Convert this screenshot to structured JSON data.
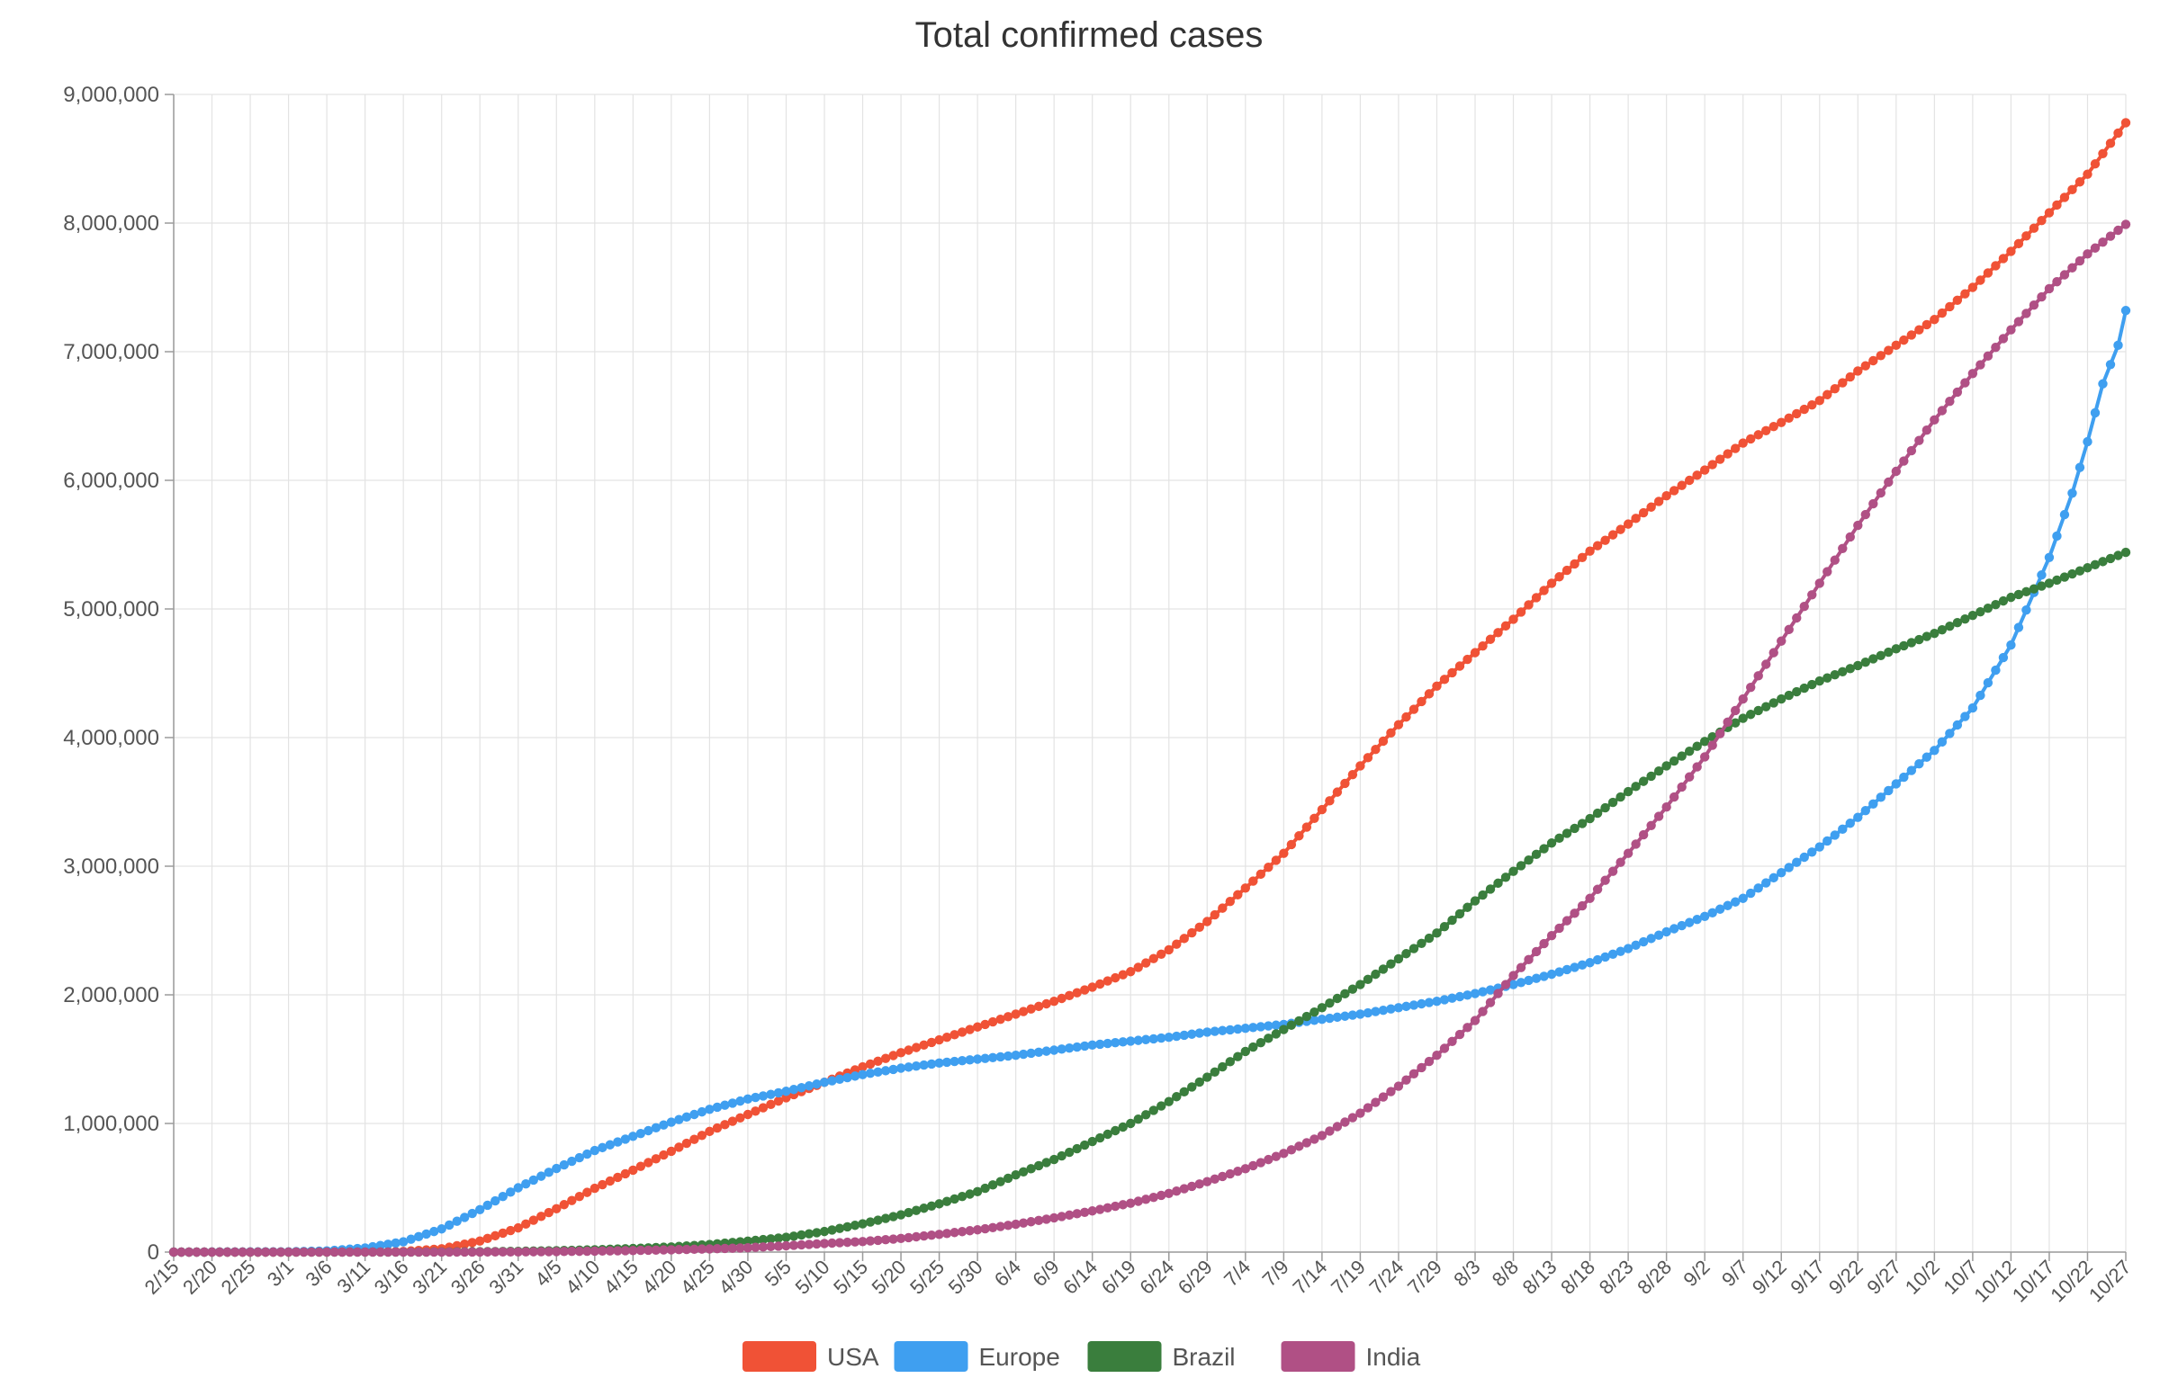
{
  "chart_data": {
    "type": "line",
    "title": "Total confirmed cases",
    "xlabel": "",
    "ylabel": "",
    "ylim": [
      0,
      9000000
    ],
    "yticks": [
      0,
      1000000,
      2000000,
      3000000,
      4000000,
      5000000,
      6000000,
      7000000,
      8000000,
      9000000
    ],
    "ytick_labels": [
      "0",
      "1,000,000",
      "2,000,000",
      "3,000,000",
      "4,000,000",
      "5,000,000",
      "6,000,000",
      "7,000,000",
      "8,000,000",
      "9,000,000"
    ],
    "x_start": "2/15",
    "x_end": "10/27",
    "x_tick_labels": [
      "2/15",
      "2/20",
      "2/25",
      "3/1",
      "3/6",
      "3/11",
      "3/16",
      "3/21",
      "3/26",
      "3/31",
      "4/5",
      "4/10",
      "4/15",
      "4/20",
      "4/25",
      "4/30",
      "5/5",
      "5/10",
      "5/15",
      "5/20",
      "5/25",
      "5/30",
      "6/4",
      "6/9",
      "6/14",
      "6/19",
      "6/24",
      "6/29",
      "7/4",
      "7/9",
      "7/14",
      "7/19",
      "7/24",
      "7/29",
      "8/3",
      "8/8",
      "8/13",
      "8/18",
      "8/23",
      "8/28",
      "9/2",
      "9/7",
      "9/12",
      "9/17",
      "9/22",
      "9/27",
      "10/2",
      "10/7",
      "10/12",
      "10/17",
      "10/22",
      "10/27"
    ],
    "grid": true,
    "legend_position": "bottom",
    "series": [
      {
        "name": "USA",
        "color": "#f05236",
        "points": [
          [
            "2/15",
            0
          ],
          [
            "3/1",
            70
          ],
          [
            "3/11",
            1300
          ],
          [
            "3/16",
            4600
          ],
          [
            "3/21",
            25500
          ],
          [
            "3/26",
            86000
          ],
          [
            "3/31",
            188000
          ],
          [
            "4/5",
            337000
          ],
          [
            "4/10",
            496000
          ],
          [
            "4/15",
            637000
          ],
          [
            "4/20",
            784000
          ],
          [
            "4/25",
            938000
          ],
          [
            "4/30",
            1070000
          ],
          [
            "5/5",
            1200000
          ],
          [
            "5/10",
            1320000
          ],
          [
            "5/15",
            1440000
          ],
          [
            "5/20",
            1550000
          ],
          [
            "5/25",
            1650000
          ],
          [
            "5/30",
            1750000
          ],
          [
            "6/4",
            1850000
          ],
          [
            "6/9",
            1950000
          ],
          [
            "6/14",
            2060000
          ],
          [
            "6/19",
            2180000
          ],
          [
            "6/24",
            2350000
          ],
          [
            "6/29",
            2570000
          ],
          [
            "7/4",
            2830000
          ],
          [
            "7/9",
            3100000
          ],
          [
            "7/14",
            3440000
          ],
          [
            "7/19",
            3780000
          ],
          [
            "7/24",
            4100000
          ],
          [
            "7/29",
            4400000
          ],
          [
            "8/3",
            4660000
          ],
          [
            "8/8",
            4920000
          ],
          [
            "8/13",
            5200000
          ],
          [
            "8/18",
            5450000
          ],
          [
            "8/23",
            5660000
          ],
          [
            "8/28",
            5880000
          ],
          [
            "9/2",
            6080000
          ],
          [
            "9/7",
            6290000
          ],
          [
            "9/12",
            6450000
          ],
          [
            "9/17",
            6620000
          ],
          [
            "9/22",
            6850000
          ],
          [
            "9/27",
            7050000
          ],
          [
            "10/2",
            7250000
          ],
          [
            "10/7",
            7500000
          ],
          [
            "10/12",
            7780000
          ],
          [
            "10/17",
            8080000
          ],
          [
            "10/22",
            8380000
          ],
          [
            "10/27",
            8780000
          ]
        ]
      },
      {
        "name": "Europe",
        "color": "#3f9ff0",
        "points": [
          [
            "2/15",
            0
          ],
          [
            "3/1",
            2500
          ],
          [
            "3/6",
            9000
          ],
          [
            "3/11",
            32000
          ],
          [
            "3/16",
            80000
          ],
          [
            "3/21",
            180000
          ],
          [
            "3/26",
            330000
          ],
          [
            "3/31",
            500000
          ],
          [
            "4/5",
            650000
          ],
          [
            "4/10",
            790000
          ],
          [
            "4/15",
            900000
          ],
          [
            "4/20",
            1010000
          ],
          [
            "4/25",
            1110000
          ],
          [
            "4/30",
            1190000
          ],
          [
            "5/5",
            1250000
          ],
          [
            "5/10",
            1320000
          ],
          [
            "5/15",
            1380000
          ],
          [
            "5/20",
            1430000
          ],
          [
            "5/25",
            1470000
          ],
          [
            "5/30",
            1500000
          ],
          [
            "6/4",
            1530000
          ],
          [
            "6/9",
            1570000
          ],
          [
            "6/14",
            1610000
          ],
          [
            "6/19",
            1640000
          ],
          [
            "6/24",
            1670000
          ],
          [
            "6/29",
            1710000
          ],
          [
            "7/4",
            1740000
          ],
          [
            "7/9",
            1770000
          ],
          [
            "7/14",
            1810000
          ],
          [
            "7/19",
            1850000
          ],
          [
            "7/24",
            1900000
          ],
          [
            "7/29",
            1950000
          ],
          [
            "8/3",
            2010000
          ],
          [
            "8/8",
            2080000
          ],
          [
            "8/13",
            2160000
          ],
          [
            "8/18",
            2250000
          ],
          [
            "8/23",
            2360000
          ],
          [
            "8/28",
            2490000
          ],
          [
            "9/2",
            2610000
          ],
          [
            "9/7",
            2750000
          ],
          [
            "9/12",
            2950000
          ],
          [
            "9/17",
            3150000
          ],
          [
            "9/22",
            3380000
          ],
          [
            "9/27",
            3640000
          ],
          [
            "10/2",
            3900000
          ],
          [
            "10/7",
            4230000
          ],
          [
            "10/12",
            4720000
          ],
          [
            "10/17",
            5400000
          ],
          [
            "10/20",
            5900000
          ],
          [
            "10/22",
            6300000
          ],
          [
            "10/24",
            6750000
          ],
          [
            "10/26",
            7050000
          ],
          [
            "10/27",
            7320000
          ]
        ]
      },
      {
        "name": "Brazil",
        "color": "#3a7e3d",
        "points": [
          [
            "2/15",
            0
          ],
          [
            "3/16",
            200
          ],
          [
            "3/21",
            1200
          ],
          [
            "3/26",
            3000
          ],
          [
            "3/31",
            6000
          ],
          [
            "4/5",
            11000
          ],
          [
            "4/10",
            18000
          ],
          [
            "4/15",
            28000
          ],
          [
            "4/20",
            40000
          ],
          [
            "4/25",
            59000
          ],
          [
            "4/30",
            85000
          ],
          [
            "5/5",
            115000
          ],
          [
            "5/10",
            160000
          ],
          [
            "5/15",
            220000
          ],
          [
            "5/20",
            290000
          ],
          [
            "5/25",
            375000
          ],
          [
            "5/30",
            470000
          ],
          [
            "6/4",
            600000
          ],
          [
            "6/9",
            720000
          ],
          [
            "6/14",
            860000
          ],
          [
            "6/19",
            1000000
          ],
          [
            "6/24",
            1170000
          ],
          [
            "6/29",
            1360000
          ],
          [
            "7/4",
            1560000
          ],
          [
            "7/9",
            1730000
          ],
          [
            "7/14",
            1900000
          ],
          [
            "7/19",
            2080000
          ],
          [
            "7/24",
            2280000
          ],
          [
            "7/29",
            2480000
          ],
          [
            "8/3",
            2730000
          ],
          [
            "8/8",
            2960000
          ],
          [
            "8/13",
            3180000
          ],
          [
            "8/18",
            3370000
          ],
          [
            "8/23",
            3580000
          ],
          [
            "8/28",
            3780000
          ],
          [
            "9/2",
            3970000
          ],
          [
            "9/7",
            4150000
          ],
          [
            "9/12",
            4300000
          ],
          [
            "9/17",
            4440000
          ],
          [
            "9/22",
            4560000
          ],
          [
            "9/27",
            4690000
          ],
          [
            "10/2",
            4810000
          ],
          [
            "10/7",
            4950000
          ],
          [
            "10/12",
            5090000
          ],
          [
            "10/17",
            5200000
          ],
          [
            "10/22",
            5320000
          ],
          [
            "10/27",
            5440000
          ]
        ]
      },
      {
        "name": "India",
        "color": "#b05085",
        "points": [
          [
            "2/15",
            0
          ],
          [
            "3/21",
            300
          ],
          [
            "3/26",
            700
          ],
          [
            "3/31",
            1600
          ],
          [
            "4/5",
            4000
          ],
          [
            "4/10",
            7600
          ],
          [
            "4/15",
            12000
          ],
          [
            "4/20",
            18000
          ],
          [
            "4/25",
            25000
          ],
          [
            "4/30",
            34000
          ],
          [
            "5/5",
            49000
          ],
          [
            "5/10",
            67000
          ],
          [
            "5/15",
            82000
          ],
          [
            "5/20",
            106000
          ],
          [
            "5/25",
            138000
          ],
          [
            "5/30",
            173000
          ],
          [
            "6/4",
            216000
          ],
          [
            "6/9",
            266000
          ],
          [
            "6/14",
            320000
          ],
          [
            "6/19",
            380000
          ],
          [
            "6/24",
            456000
          ],
          [
            "6/29",
            548000
          ],
          [
            "7/4",
            648000
          ],
          [
            "7/9",
            767000
          ],
          [
            "7/14",
            906000
          ],
          [
            "7/19",
            1080000
          ],
          [
            "7/24",
            1290000
          ],
          [
            "7/29",
            1530000
          ],
          [
            "8/3",
            1800000
          ],
          [
            "8/8",
            2150000
          ],
          [
            "8/13",
            2460000
          ],
          [
            "8/18",
            2750000
          ],
          [
            "8/23",
            3100000
          ],
          [
            "8/28",
            3460000
          ],
          [
            "9/2",
            3850000
          ],
          [
            "9/7",
            4300000
          ],
          [
            "9/12",
            4750000
          ],
          [
            "9/17",
            5200000
          ],
          [
            "9/22",
            5650000
          ],
          [
            "9/27",
            6070000
          ],
          [
            "10/2",
            6470000
          ],
          [
            "10/7",
            6830000
          ],
          [
            "10/12",
            7170000
          ],
          [
            "10/17",
            7490000
          ],
          [
            "10/22",
            7760000
          ],
          [
            "10/27",
            7990000
          ]
        ]
      }
    ]
  }
}
